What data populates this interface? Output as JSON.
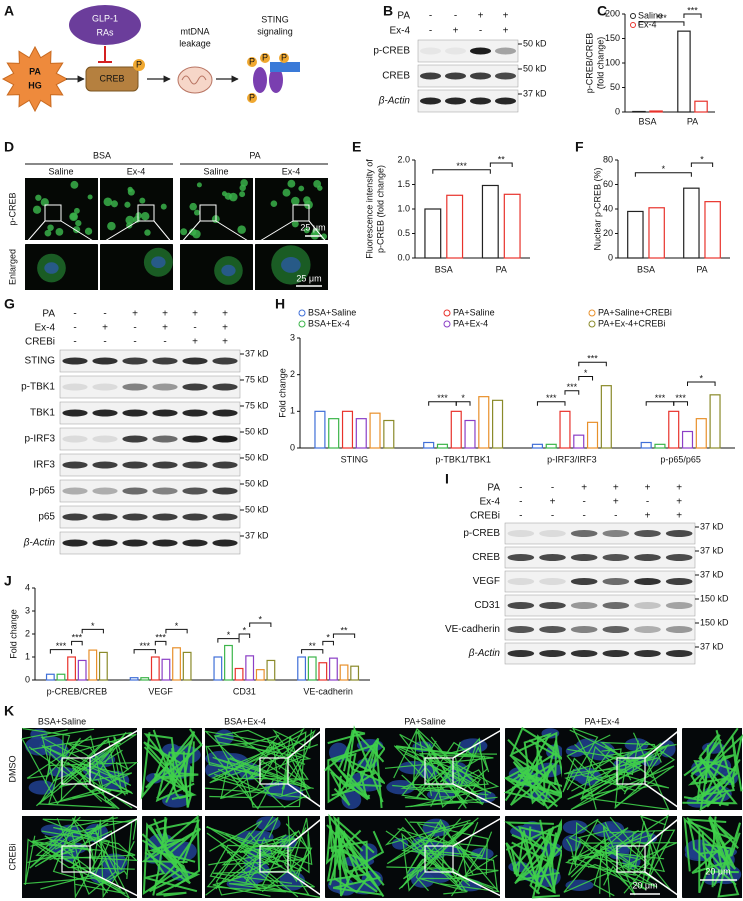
{
  "panel_labels": [
    "A",
    "B",
    "C",
    "D",
    "E",
    "F",
    "G",
    "H",
    "I",
    "J",
    "K"
  ],
  "diagram": {
    "stimulus": [
      "PA",
      "HG"
    ],
    "drug": [
      "GLP-1",
      "RAs"
    ],
    "protein": "CREB",
    "phospho": "P",
    "step2": [
      "mtDNA",
      "leakage"
    ],
    "step3": [
      "STING",
      "signaling"
    ]
  },
  "blots": [
    {
      "conditions": [
        {
          "name": "PA",
          "signs": [
            "-",
            "-",
            "+",
            "+"
          ]
        },
        {
          "name": "Ex-4",
          "signs": [
            "-",
            "+",
            "-",
            "+"
          ]
        }
      ],
      "rows": [
        {
          "name": "p-CREB",
          "marker": "50 kD"
        },
        {
          "name": "CREB",
          "marker": "50 kD"
        },
        {
          "name": "β-Actin",
          "marker": "37 kD"
        }
      ]
    },
    {
      "conditions": [
        {
          "name": "PA",
          "signs": [
            "-",
            "-",
            "+",
            "+",
            "+",
            "+"
          ]
        },
        {
          "name": "Ex-4",
          "signs": [
            "-",
            "+",
            "-",
            "+",
            "-",
            "+"
          ]
        },
        {
          "name": "CREBi",
          "signs": [
            "-",
            "-",
            "-",
            "-",
            "+",
            "+"
          ]
        }
      ],
      "rows": [
        {
          "name": "STING",
          "marker": "37 kD"
        },
        {
          "name": "p-TBK1",
          "marker": "75 kD"
        },
        {
          "name": "TBK1",
          "marker": "75 kD"
        },
        {
          "name": "p-IRF3",
          "marker": "50 kD"
        },
        {
          "name": "IRF3",
          "marker": "50 kD"
        },
        {
          "name": "p-p65",
          "marker": "50 kD"
        },
        {
          "name": "p65",
          "marker": "50 kD"
        },
        {
          "name": "β-Actin",
          "marker": "37 kD"
        }
      ]
    },
    {
      "conditions": [
        {
          "name": "PA",
          "signs": [
            "-",
            "-",
            "+",
            "+",
            "+",
            "+"
          ]
        },
        {
          "name": "Ex-4",
          "signs": [
            "-",
            "+",
            "-",
            "+",
            "-",
            "+"
          ]
        },
        {
          "name": "CREBi",
          "signs": [
            "-",
            "-",
            "-",
            "-",
            "+",
            "+"
          ]
        }
      ],
      "rows": [
        {
          "name": "p-CREB",
          "marker": "37 kD"
        },
        {
          "name": "CREB",
          "marker": "37 kD"
        },
        {
          "name": "VEGF",
          "marker": "37 kD"
        },
        {
          "name": "CD31",
          "marker": "150 kD"
        },
        {
          "name": "VE-cadherin",
          "marker": "150 kD"
        },
        {
          "name": "β-Actin",
          "marker": "37 kD"
        }
      ]
    }
  ],
  "micrographs": {
    "D": {
      "groups": [
        "BSA",
        "PA"
      ],
      "columns": [
        "Saline",
        "Ex-4",
        "Saline",
        "Ex-4"
      ],
      "rows": [
        "p-CREB",
        "Enlarged"
      ],
      "scale_bars": [
        "25 μm",
        "25 μm"
      ]
    },
    "K": {
      "columns": [
        "BSA+Saline",
        "BSA+Ex-4",
        "PA+Saline",
        "PA+Ex-4"
      ],
      "rows": [
        "DMSO",
        "CREBi"
      ],
      "scale_bars": [
        "20 μm",
        "20 μm"
      ]
    }
  },
  "chart_data": [
    {
      "type": "bar",
      "ylabel": [
        "p-CREB/CREB",
        "(fold change)"
      ],
      "categories": [
        "BSA",
        "PA"
      ],
      "series": [
        {
          "name": "Saline",
          "color": "#222222",
          "values": [
            1,
            165
          ]
        },
        {
          "name": "Ex-4",
          "color": "#e8322b",
          "values": [
            2,
            22
          ]
        }
      ],
      "ylim": [
        0,
        200
      ],
      "yticks": [
        0,
        50,
        100,
        150,
        200
      ],
      "legend": "top-left",
      "annotations": [
        "***",
        "***"
      ]
    },
    {
      "type": "bar",
      "ylabel": [
        "Fluorescence intensity of",
        "p-CREB (fold change)"
      ],
      "categories": [
        "BSA",
        "PA"
      ],
      "series": [
        {
          "color": "#222222",
          "values": [
            1.0,
            1.48
          ]
        },
        {
          "color": "#e8322b",
          "values": [
            1.28,
            1.3
          ]
        }
      ],
      "ylim": [
        0,
        2
      ],
      "yticks": [
        {
          "value": 0,
          "label": "0.0"
        },
        0.5,
        {
          "value": 1,
          "label": "1.0"
        },
        1.5,
        {
          "value": 2,
          "label": "2.0"
        }
      ],
      "annotations": [
        "***",
        "**"
      ]
    },
    {
      "type": "bar",
      "ylabel": [
        "Nuclear p-CREB (%)"
      ],
      "categories": [
        "BSA",
        "PA"
      ],
      "series": [
        {
          "color": "#222222",
          "values": [
            38,
            57
          ]
        },
        {
          "color": "#e8322b",
          "values": [
            41,
            46
          ]
        }
      ],
      "ylim": [
        0,
        80
      ],
      "yticks": [
        0,
        20,
        40,
        60,
        80
      ],
      "annotations": [
        "*",
        "*"
      ]
    },
    {
      "type": "bar",
      "ylabel": [
        "Fold change"
      ],
      "categories": [
        "STING",
        "p-TBK1/TBK1",
        "p-IRF3/IRF3",
        "p-p65/p65"
      ],
      "series": [
        {
          "name": "BSA+Saline",
          "color": "#3f6fd8",
          "values": [
            1.0,
            0.15,
            0.1,
            0.15
          ]
        },
        {
          "name": "BSA+Ex-4",
          "color": "#3cb54a",
          "values": [
            0.8,
            0.1,
            0.1,
            0.1
          ]
        },
        {
          "name": "PA+Saline",
          "color": "#e8322b",
          "values": [
            1.0,
            1.0,
            1.0,
            1.0
          ]
        },
        {
          "name": "PA+Ex-4",
          "color": "#8b3fc6",
          "values": [
            0.8,
            0.75,
            0.35,
            0.45
          ]
        },
        {
          "name": "PA+Saline+CREBi",
          "color": "#e8902b",
          "values": [
            0.95,
            1.4,
            0.7,
            0.8
          ]
        },
        {
          "name": "PA+Ex-4+CREBi",
          "color": "#8a8a2a",
          "values": [
            0.75,
            1.3,
            1.7,
            1.45
          ]
        }
      ],
      "ylim": [
        0,
        3
      ],
      "yticks": [
        0,
        1,
        2,
        3
      ],
      "legend": "top",
      "annotations": [
        "***",
        "*",
        "***",
        "***",
        "*",
        "***",
        "***",
        "***",
        "*"
      ]
    },
    {
      "type": "bar",
      "ylabel": [
        "Fold change"
      ],
      "categories": [
        "p-CREB/CREB",
        "VEGF",
        "CD31",
        "VE-cadherin"
      ],
      "series": [
        {
          "color": "#3f6fd8",
          "values": [
            0.25,
            0.1,
            1.0,
            1.0
          ]
        },
        {
          "color": "#3cb54a",
          "values": [
            0.25,
            0.1,
            1.5,
            1.0
          ]
        },
        {
          "color": "#e8322b",
          "values": [
            1.0,
            1.0,
            0.5,
            0.75
          ]
        },
        {
          "color": "#8b3fc6",
          "values": [
            0.85,
            0.9,
            1.05,
            0.95
          ]
        },
        {
          "color": "#e8902b",
          "values": [
            1.3,
            1.4,
            0.45,
            0.65
          ]
        },
        {
          "color": "#8a8a2a",
          "values": [
            1.2,
            1.2,
            0.85,
            0.6
          ]
        }
      ],
      "ylim": [
        0,
        4
      ],
      "yticks": [
        0,
        1,
        2,
        3,
        4
      ],
      "annotations": [
        "***",
        "***",
        "*",
        "***",
        "***",
        "*",
        "*",
        "*",
        "*",
        "**",
        "*",
        "**"
      ]
    }
  ]
}
